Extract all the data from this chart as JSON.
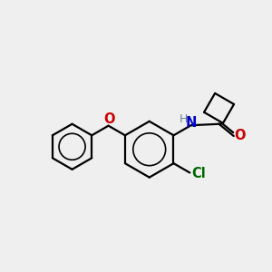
{
  "background_color": "#efefef",
  "bond_color": "#000000",
  "bond_width": 1.6,
  "nitrogen_color": "#0000cc",
  "oxygen_color": "#cc0000",
  "chlorine_color": "#006600",
  "h_color": "#708090",
  "figsize": [
    3.0,
    3.0
  ],
  "dpi": 100,
  "xlim": [
    0,
    10
  ],
  "ylim": [
    0,
    10
  ]
}
